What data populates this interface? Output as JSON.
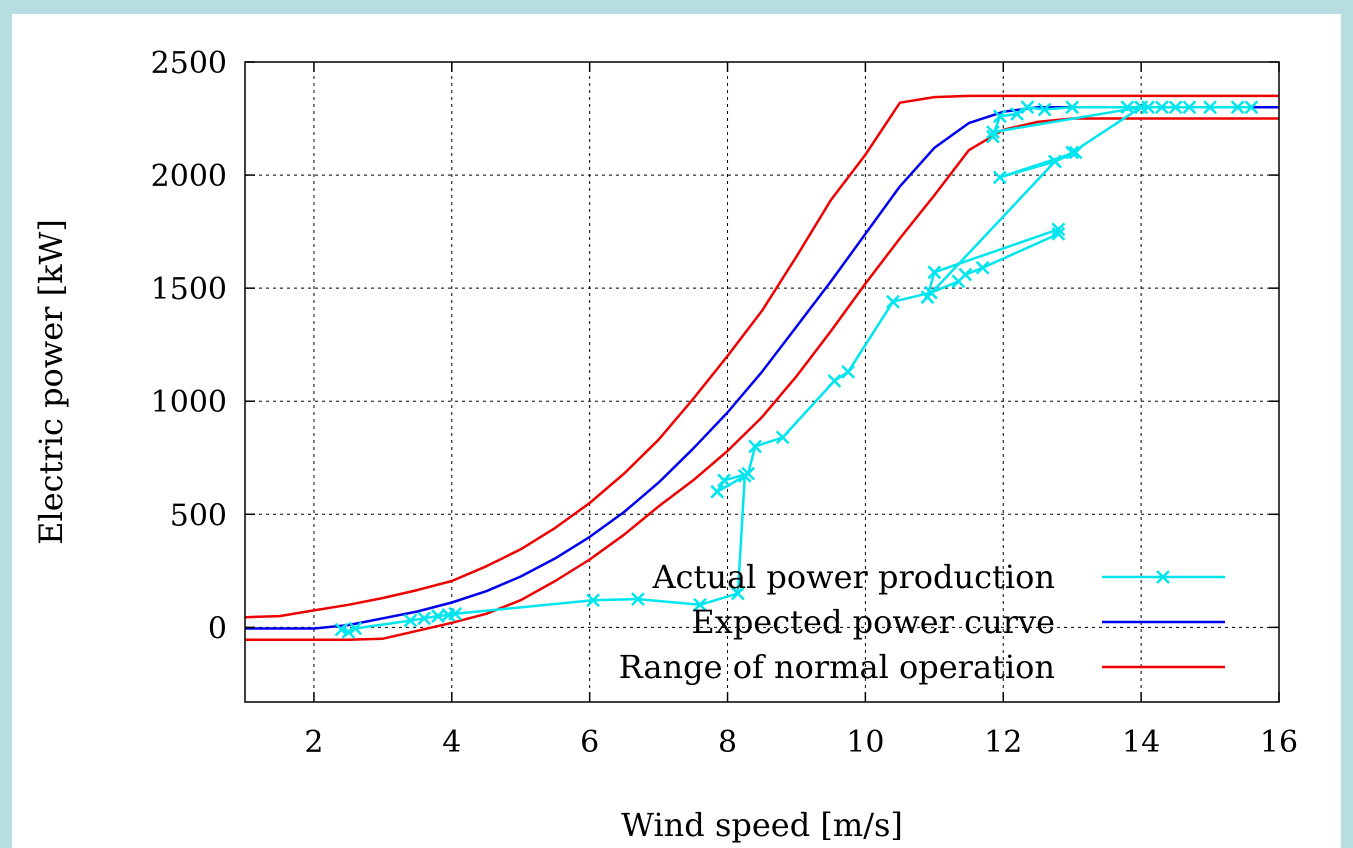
{
  "chart_data": {
    "type": "line",
    "title": "",
    "xlabel": "Wind speed [m/s]",
    "ylabel": "Electric power [kW]",
    "xlim": [
      1,
      16
    ],
    "ylim": [
      -330,
      2500
    ],
    "xticks": [
      2,
      4,
      6,
      8,
      10,
      12,
      14,
      16
    ],
    "yticks": [
      0,
      500,
      1000,
      1500,
      2000,
      2500
    ],
    "grid": true,
    "legend_position": "bottom-right",
    "series": [
      {
        "name": "Actual power production",
        "color": "#00e5ee",
        "marker": "x",
        "x": [
          2.4,
          2.5,
          2.6,
          3.4,
          3.6,
          3.8,
          3.95,
          4.05,
          6.05,
          6.7,
          7.6,
          8.15,
          8.25,
          7.85,
          7.95,
          8.3,
          8.4,
          8.8,
          9.55,
          9.75,
          10.4,
          10.95,
          11.35,
          11.45,
          11.7,
          12.8,
          12.8,
          11.0,
          10.9,
          12.75,
          13.05,
          11.95,
          12.75,
          13.0,
          14.0,
          11.85,
          11.85,
          11.95,
          12.2,
          12.35,
          12.6,
          13.0,
          13.8,
          14.0,
          14.1,
          14.3,
          14.5,
          14.7,
          15.0,
          15.4,
          15.6
        ],
        "y": [
          -10,
          -20,
          -5,
          30,
          40,
          50,
          55,
          60,
          120,
          125,
          100,
          150,
          670,
          600,
          650,
          680,
          800,
          840,
          1090,
          1130,
          1440,
          1480,
          1530,
          1560,
          1590,
          1740,
          1760,
          1570,
          1460,
          2060,
          2100,
          1990,
          2060,
          2100,
          2300,
          2190,
          2170,
          2260,
          2270,
          2300,
          2290,
          2300,
          2300,
          2300,
          2300,
          2300,
          2300,
          2300,
          2300,
          2300,
          2300
        ]
      },
      {
        "name": "Expected power curve",
        "color": "#0000ee",
        "x": [
          1,
          1.5,
          2,
          2.5,
          3,
          3.5,
          4,
          4.5,
          5,
          5.5,
          6,
          6.5,
          7,
          7.5,
          8,
          8.5,
          9,
          9.5,
          10,
          10.5,
          11,
          11.5,
          12,
          12.5,
          13,
          14,
          15,
          16
        ],
        "y": [
          -5,
          -5,
          -5,
          10,
          40,
          70,
          110,
          160,
          225,
          305,
          400,
          510,
          640,
          790,
          950,
          1130,
          1330,
          1530,
          1740,
          1950,
          2120,
          2230,
          2280,
          2300,
          2300,
          2300,
          2300,
          2300
        ]
      },
      {
        "name": "Range of normal operation",
        "color": "#ee0000",
        "x": [
          1,
          1.5,
          2,
          2.5,
          3,
          3.5,
          4,
          4.5,
          5,
          5.5,
          6,
          6.5,
          7,
          7.5,
          8,
          8.5,
          9,
          9.5,
          10,
          10.5,
          11,
          11.5,
          12,
          12.5,
          13,
          14,
          15,
          16
        ],
        "y": [
          45,
          50,
          75,
          100,
          130,
          165,
          205,
          270,
          345,
          440,
          550,
          680,
          830,
          1010,
          1200,
          1400,
          1640,
          1890,
          2090,
          2320,
          2345,
          2350,
          2350,
          2350,
          2350,
          2350,
          2350,
          2350
        ]
      },
      {
        "name": "",
        "color": "#ee0000",
        "x": [
          1,
          1.5,
          2,
          2.5,
          3,
          3.5,
          4,
          4.5,
          5,
          5.5,
          6,
          6.5,
          7,
          7.5,
          8,
          8.5,
          9,
          9.5,
          10,
          10.5,
          11,
          11.5,
          12,
          12.5,
          13,
          14,
          15,
          16
        ],
        "y": [
          -55,
          -55,
          -55,
          -55,
          -50,
          -15,
          20,
          60,
          120,
          205,
          300,
          410,
          535,
          650,
          780,
          930,
          1110,
          1310,
          1520,
          1720,
          1910,
          2110,
          2200,
          2235,
          2250,
          2250,
          2250,
          2250
        ]
      }
    ]
  }
}
